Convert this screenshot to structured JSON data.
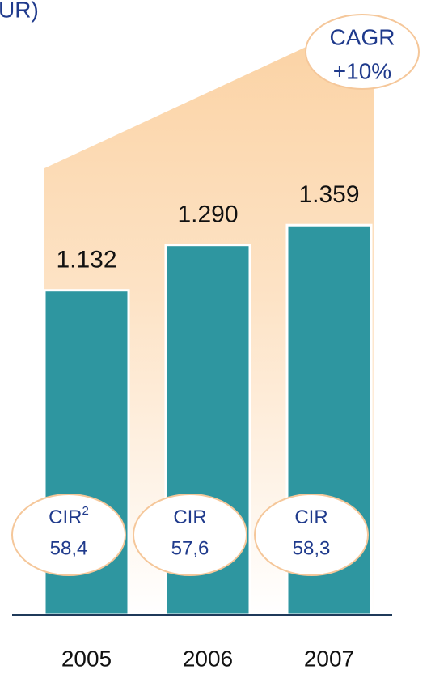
{
  "chart_data": {
    "type": "bar",
    "title": "UR)",
    "categories": [
      "2005",
      "2006",
      "2007"
    ],
    "values": [
      1132,
      1290,
      1359
    ],
    "value_labels": [
      "1.132",
      "1.290",
      "1.359"
    ],
    "color": "#2e96a0",
    "annotations": {
      "cagr": {
        "label": "CAGR",
        "value": "+10%"
      },
      "cir": [
        {
          "label": "CIR",
          "sup": "2",
          "value": "58,4"
        },
        {
          "label": "CIR",
          "value": "57,6"
        },
        {
          "label": "CIR",
          "value": "58,3"
        }
      ]
    }
  }
}
